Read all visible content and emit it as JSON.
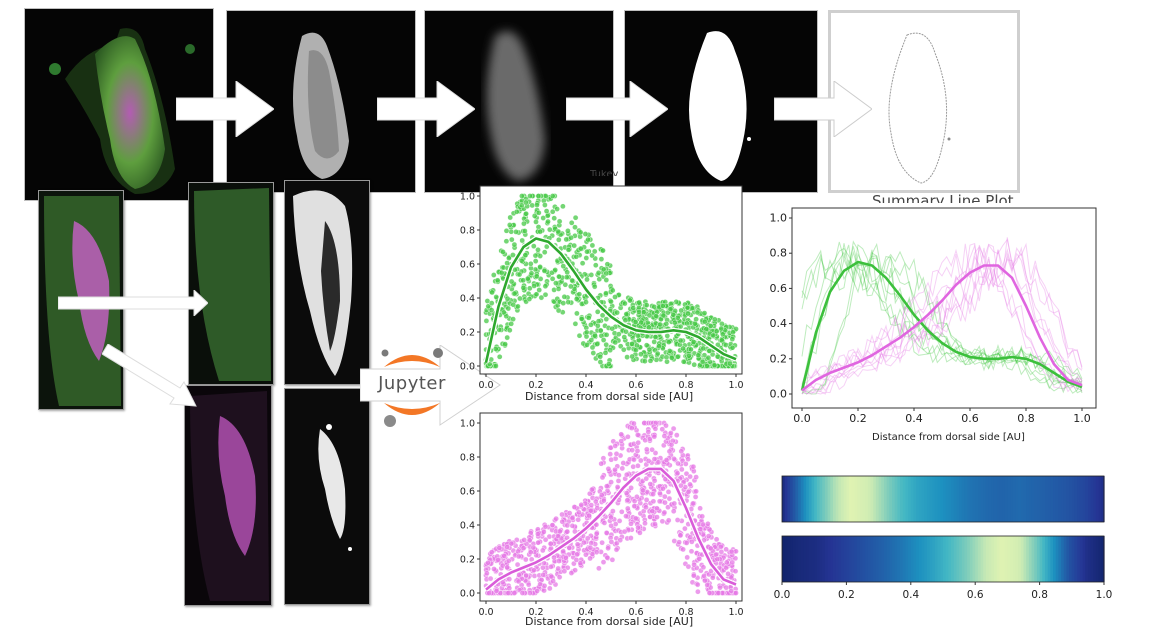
{
  "logo": {
    "text": "Jupyter"
  },
  "colors": {
    "green": "#46c846",
    "magenta": "#e57ae5",
    "green_dark": "#2ea82e",
    "magenta_dark": "#d95cd9"
  },
  "labels": {
    "xlabel_green": "Distance from dorsal side [AU]",
    "xlabel_magenta": "Distance from dorsal side [AU]",
    "xlabel_summary": "Distance from dorsal side [AU]",
    "title_green_partial": "Tukey",
    "title_summary_partial": "Summary Line Plot"
  },
  "chart_data": [
    {
      "type": "scatter",
      "xlabel": "Distance from dorsal side [AU]",
      "ylabel": "",
      "xlim": [
        0,
        1
      ],
      "ylim": [
        0,
        1
      ],
      "xticks": [
        "0.0",
        "0.2",
        "0.4",
        "0.6",
        "0.8",
        "1.0"
      ],
      "yticks": [
        "0.0",
        "0.2",
        "0.4",
        "0.6",
        "0.8",
        "1.0"
      ],
      "fit": {
        "x": [
          0,
          0.05,
          0.1,
          0.15,
          0.2,
          0.25,
          0.3,
          0.35,
          0.4,
          0.45,
          0.5,
          0.55,
          0.6,
          0.65,
          0.7,
          0.75,
          0.8,
          0.85,
          0.9,
          0.95,
          1.0
        ],
        "y": [
          0.02,
          0.35,
          0.58,
          0.7,
          0.75,
          0.73,
          0.66,
          0.56,
          0.45,
          0.36,
          0.29,
          0.24,
          0.21,
          0.2,
          0.2,
          0.21,
          0.2,
          0.17,
          0.12,
          0.07,
          0.04
        ]
      }
    },
    {
      "type": "scatter",
      "xlabel": "Distance from dorsal side [AU]",
      "ylabel": "",
      "xlim": [
        0,
        1
      ],
      "ylim": [
        0,
        1
      ],
      "xticks": [
        "0.0",
        "0.2",
        "0.4",
        "0.6",
        "0.8",
        "1.0"
      ],
      "yticks": [
        "0.0",
        "0.2",
        "0.4",
        "0.6",
        "0.8",
        "1.0"
      ],
      "fit": {
        "x": [
          0,
          0.05,
          0.1,
          0.15,
          0.2,
          0.25,
          0.3,
          0.35,
          0.4,
          0.45,
          0.5,
          0.55,
          0.6,
          0.65,
          0.7,
          0.75,
          0.8,
          0.85,
          0.9,
          0.95,
          1.0
        ],
        "y": [
          0.02,
          0.08,
          0.12,
          0.15,
          0.18,
          0.22,
          0.27,
          0.32,
          0.38,
          0.45,
          0.53,
          0.62,
          0.69,
          0.73,
          0.73,
          0.66,
          0.5,
          0.32,
          0.17,
          0.08,
          0.05
        ]
      }
    },
    {
      "type": "line",
      "xlabel": "Distance from dorsal side [AU]",
      "ylabel": "",
      "xlim": [
        0,
        1
      ],
      "ylim": [
        0,
        1
      ],
      "xticks": [
        "0.0",
        "0.2",
        "0.4",
        "0.6",
        "0.8",
        "1.0"
      ],
      "yticks": [
        "0.0",
        "0.2",
        "0.4",
        "0.6",
        "0.8",
        "1.0"
      ],
      "series": [
        {
          "x": [
            0,
            0.05,
            0.1,
            0.15,
            0.2,
            0.25,
            0.3,
            0.35,
            0.4,
            0.45,
            0.5,
            0.55,
            0.6,
            0.65,
            0.7,
            0.75,
            0.8,
            0.85,
            0.9,
            0.95,
            1.0
          ],
          "y": [
            0.02,
            0.35,
            0.58,
            0.7,
            0.75,
            0.73,
            0.66,
            0.56,
            0.45,
            0.36,
            0.29,
            0.24,
            0.21,
            0.2,
            0.2,
            0.21,
            0.2,
            0.17,
            0.12,
            0.07,
            0.04
          ]
        },
        {
          "x": [
            0,
            0.05,
            0.1,
            0.15,
            0.2,
            0.25,
            0.3,
            0.35,
            0.4,
            0.45,
            0.5,
            0.55,
            0.6,
            0.65,
            0.7,
            0.75,
            0.8,
            0.85,
            0.9,
            0.95,
            1.0
          ],
          "y": [
            0.02,
            0.08,
            0.12,
            0.15,
            0.18,
            0.22,
            0.27,
            0.32,
            0.38,
            0.45,
            0.53,
            0.62,
            0.69,
            0.73,
            0.73,
            0.66,
            0.5,
            0.32,
            0.17,
            0.08,
            0.05
          ]
        }
      ]
    },
    {
      "type": "heatmap",
      "xticks": [
        "0.0",
        "0.2",
        "0.4",
        "0.6",
        "0.8",
        "1.0"
      ],
      "rows": [
        {
          "values": [
            0.1,
            0.35,
            0.6,
            0.8,
            0.95,
            0.9,
            0.75,
            0.6,
            0.5,
            0.45,
            0.4,
            0.35,
            0.32,
            0.3,
            0.32,
            0.3,
            0.28,
            0.25,
            0.2,
            0.12
          ]
        },
        {
          "values": [
            0.05,
            0.08,
            0.1,
            0.15,
            0.2,
            0.25,
            0.3,
            0.35,
            0.42,
            0.5,
            0.6,
            0.72,
            0.85,
            0.95,
            0.9,
            0.7,
            0.45,
            0.25,
            0.12,
            0.06
          ]
        }
      ]
    }
  ]
}
